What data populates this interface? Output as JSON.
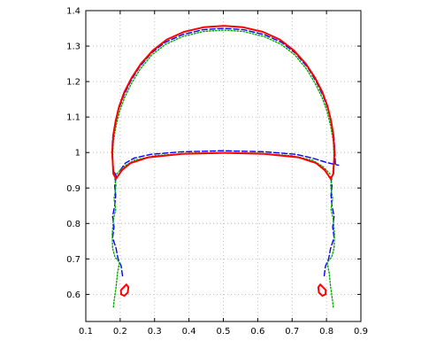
{
  "chart_data": {
    "type": "line",
    "title": "",
    "xlabel": "",
    "ylabel": "",
    "xlim": [
      0.1,
      0.9
    ],
    "ylim": [
      0.5236,
      1.4
    ],
    "grid": true,
    "box": true,
    "x_ticks": [
      "0.1",
      "0.2",
      "0.3",
      "0.4",
      "0.5",
      "0.6",
      "0.7",
      "0.8",
      "0.9"
    ],
    "y_ticks": [
      "0.6",
      "0.7",
      "0.8",
      "0.9",
      "1",
      "1.1",
      "1.2",
      "1.3",
      "1.4"
    ],
    "series": [
      {
        "color": "#0000ff",
        "style": "dashed",
        "segments": [
          [
            [
              0.19,
              0.931
            ],
            [
              0.18,
              0.95
            ],
            [
              0.176,
              1.0
            ],
            [
              0.178,
              1.04
            ],
            [
              0.186,
              1.08
            ],
            [
              0.195,
              1.12
            ],
            [
              0.21,
              1.16
            ],
            [
              0.23,
              1.2
            ],
            [
              0.255,
              1.24
            ],
            [
              0.29,
              1.28
            ],
            [
              0.33,
              1.31
            ],
            [
              0.38,
              1.332
            ],
            [
              0.44,
              1.346
            ],
            [
              0.5,
              1.35
            ],
            [
              0.56,
              1.346
            ],
            [
              0.62,
              1.332
            ],
            [
              0.67,
              1.31
            ],
            [
              0.71,
              1.28
            ],
            [
              0.745,
              1.24
            ],
            [
              0.77,
              1.2
            ],
            [
              0.79,
              1.16
            ],
            [
              0.805,
              1.12
            ],
            [
              0.815,
              1.08
            ],
            [
              0.822,
              1.04
            ],
            [
              0.824,
              1.0
            ],
            [
              0.826,
              0.965
            ]
          ],
          [
            [
              0.2,
              0.95
            ],
            [
              0.215,
              0.97
            ],
            [
              0.24,
              0.984
            ],
            [
              0.29,
              0.995
            ],
            [
              0.38,
              1.002
            ],
            [
              0.5,
              1.005
            ],
            [
              0.62,
              1.002
            ],
            [
              0.71,
              0.995
            ],
            [
              0.76,
              0.984
            ],
            [
              0.8,
              0.972
            ],
            [
              0.835,
              0.964
            ]
          ],
          [
            [
              0.188,
              0.931
            ],
            [
              0.184,
              0.905
            ],
            [
              0.187,
              0.88
            ],
            [
              0.184,
              0.85
            ],
            [
              0.178,
              0.82
            ],
            [
              0.182,
              0.79
            ],
            [
              0.178,
              0.76
            ],
            [
              0.188,
              0.73
            ],
            [
              0.194,
              0.7
            ],
            [
              0.203,
              0.68
            ],
            [
              0.207,
              0.65
            ]
          ],
          [
            [
              0.812,
              0.931
            ],
            [
              0.816,
              0.905
            ],
            [
              0.813,
              0.88
            ],
            [
              0.816,
              0.85
            ],
            [
              0.822,
              0.82
            ],
            [
              0.818,
              0.79
            ],
            [
              0.822,
              0.76
            ],
            [
              0.812,
              0.73
            ],
            [
              0.806,
              0.7
            ],
            [
              0.797,
              0.68
            ],
            [
              0.793,
              0.65
            ]
          ]
        ]
      },
      {
        "color": "#00aa00",
        "style": "dotted",
        "segments": [
          [
            [
              0.182,
              0.94
            ],
            [
              0.178,
              0.98
            ],
            [
              0.18,
              1.03
            ],
            [
              0.188,
              1.075
            ],
            [
              0.198,
              1.115
            ],
            [
              0.213,
              1.155
            ],
            [
              0.233,
              1.195
            ],
            [
              0.258,
              1.235
            ],
            [
              0.292,
              1.275
            ],
            [
              0.332,
              1.305
            ],
            [
              0.382,
              1.327
            ],
            [
              0.441,
              1.341
            ],
            [
              0.5,
              1.345
            ],
            [
              0.559,
              1.341
            ],
            [
              0.618,
              1.327
            ],
            [
              0.668,
              1.305
            ],
            [
              0.708,
              1.275
            ],
            [
              0.742,
              1.235
            ],
            [
              0.767,
              1.195
            ],
            [
              0.787,
              1.155
            ],
            [
              0.802,
              1.115
            ],
            [
              0.812,
              1.075
            ],
            [
              0.82,
              1.03
            ],
            [
              0.822,
              0.98
            ],
            [
              0.818,
              0.94
            ]
          ],
          [
            [
              0.19,
              0.94
            ],
            [
              0.21,
              0.96
            ],
            [
              0.24,
              0.978
            ],
            [
              0.3,
              0.991
            ],
            [
              0.4,
              0.998
            ],
            [
              0.5,
              1.0
            ],
            [
              0.6,
              0.998
            ],
            [
              0.7,
              0.991
            ],
            [
              0.76,
              0.978
            ],
            [
              0.79,
              0.96
            ],
            [
              0.81,
              0.94
            ]
          ],
          [
            [
              0.183,
              0.935
            ],
            [
              0.188,
              0.905
            ],
            [
              0.182,
              0.87
            ],
            [
              0.187,
              0.84
            ],
            [
              0.18,
              0.81
            ],
            [
              0.177,
              0.77
            ],
            [
              0.178,
              0.73
            ],
            [
              0.185,
              0.705
            ],
            [
              0.198,
              0.69
            ],
            [
              0.192,
              0.66
            ],
            [
              0.188,
              0.62
            ],
            [
              0.182,
              0.58
            ],
            [
              0.18,
              0.56
            ]
          ],
          [
            [
              0.817,
              0.935
            ],
            [
              0.812,
              0.905
            ],
            [
              0.818,
              0.87
            ],
            [
              0.813,
              0.84
            ],
            [
              0.82,
              0.81
            ],
            [
              0.823,
              0.77
            ],
            [
              0.822,
              0.73
            ],
            [
              0.815,
              0.705
            ],
            [
              0.802,
              0.69
            ],
            [
              0.808,
              0.66
            ],
            [
              0.812,
              0.62
            ],
            [
              0.818,
              0.58
            ],
            [
              0.82,
              0.56
            ]
          ]
        ]
      },
      {
        "color": "#ff0000",
        "style": "solid",
        "segments": [
          [
            [
              0.188,
              0.926
            ],
            [
              0.18,
              0.94
            ],
            [
              0.177,
              1.0
            ],
            [
              0.18,
              1.05
            ],
            [
              0.187,
              1.09
            ],
            [
              0.197,
              1.13
            ],
            [
              0.212,
              1.17
            ],
            [
              0.233,
              1.21
            ],
            [
              0.26,
              1.25
            ],
            [
              0.295,
              1.288
            ],
            [
              0.335,
              1.318
            ],
            [
              0.385,
              1.34
            ],
            [
              0.442,
              1.353
            ],
            [
              0.5,
              1.357
            ],
            [
              0.558,
              1.353
            ],
            [
              0.615,
              1.34
            ],
            [
              0.665,
              1.318
            ],
            [
              0.705,
              1.288
            ],
            [
              0.74,
              1.25
            ],
            [
              0.767,
              1.21
            ],
            [
              0.788,
              1.17
            ],
            [
              0.803,
              1.13
            ],
            [
              0.813,
              1.09
            ],
            [
              0.82,
              1.05
            ],
            [
              0.823,
              1.0
            ],
            [
              0.82,
              0.94
            ],
            [
              0.812,
              0.926
            ]
          ],
          [
            [
              0.188,
              0.926
            ],
            [
              0.205,
              0.95
            ],
            [
              0.23,
              0.97
            ],
            [
              0.28,
              0.986
            ],
            [
              0.38,
              0.996
            ],
            [
              0.5,
              0.999
            ],
            [
              0.62,
              0.996
            ],
            [
              0.72,
              0.986
            ],
            [
              0.77,
              0.97
            ],
            [
              0.795,
              0.95
            ],
            [
              0.812,
              0.926
            ]
          ],
          [
            [
              0.21,
              0.62
            ],
            [
              0.218,
              0.628
            ],
            [
              0.224,
              0.62
            ],
            [
              0.222,
              0.605
            ],
            [
              0.212,
              0.596
            ],
            [
              0.203,
              0.6
            ],
            [
              0.202,
              0.612
            ],
            [
              0.21,
              0.62
            ]
          ],
          [
            [
              0.79,
              0.62
            ],
            [
              0.782,
              0.628
            ],
            [
              0.776,
              0.62
            ],
            [
              0.778,
              0.605
            ],
            [
              0.788,
              0.596
            ],
            [
              0.797,
              0.6
            ],
            [
              0.798,
              0.612
            ],
            [
              0.79,
              0.62
            ]
          ]
        ]
      }
    ]
  }
}
